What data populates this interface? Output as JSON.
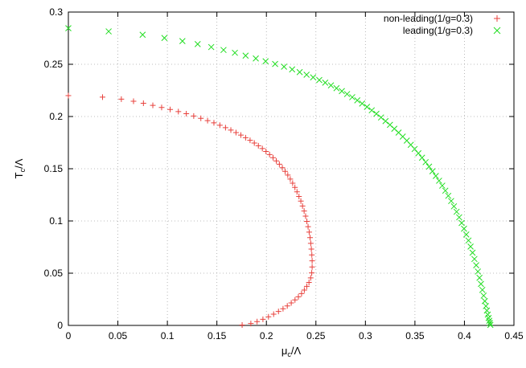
{
  "chart_data": {
    "type": "scatter",
    "title": "",
    "xlabel": {
      "main": "μ",
      "sub": "c",
      "tail": "/Λ"
    },
    "ylabel": {
      "main": "T",
      "sub": "c",
      "tail": "/Λ"
    },
    "xlim": [
      0,
      0.45
    ],
    "ylim": [
      0,
      0.3
    ],
    "x_ticks": [
      0,
      0.05,
      0.1,
      0.15,
      0.2,
      0.25,
      0.3,
      0.35,
      0.4,
      0.45
    ],
    "x_tick_labels": [
      "0",
      "0.05",
      "0.1",
      "0.15",
      "0.2",
      "0.25",
      "0.3",
      "0.35",
      "0.4",
      "0.45"
    ],
    "y_ticks": [
      0,
      0.05,
      0.1,
      0.15,
      0.2,
      0.25,
      0.3
    ],
    "y_tick_labels": [
      "0",
      "0.05",
      "0.1",
      "0.15",
      "0.2",
      "0.25",
      "0.3"
    ],
    "grid": true,
    "legend_position": "top-right",
    "series": [
      {
        "name": "non-leading(1/g=0.3)",
        "marker": "plus",
        "color": "#e8413c",
        "points": [
          [
            0.0,
            0.22
          ],
          [
            0.0345,
            0.2186
          ],
          [
            0.0535,
            0.2166
          ],
          [
            0.0658,
            0.2146
          ],
          [
            0.0758,
            0.2127
          ],
          [
            0.0853,
            0.2107
          ],
          [
            0.0942,
            0.2087
          ],
          [
            0.1028,
            0.2067
          ],
          [
            0.1111,
            0.2047
          ],
          [
            0.1191,
            0.2027
          ],
          [
            0.1266,
            0.2005
          ],
          [
            0.1338,
            0.1983
          ],
          [
            0.1406,
            0.1961
          ],
          [
            0.147,
            0.1939
          ],
          [
            0.153,
            0.1916
          ],
          [
            0.1587,
            0.1893
          ],
          [
            0.1641,
            0.187
          ],
          [
            0.1693,
            0.1846
          ],
          [
            0.1742,
            0.1822
          ],
          [
            0.179,
            0.1797
          ],
          [
            0.1835,
            0.1772
          ],
          [
            0.1878,
            0.1746
          ],
          [
            0.1919,
            0.172
          ],
          [
            0.1959,
            0.1693
          ],
          [
            0.1996,
            0.1665
          ],
          [
            0.2032,
            0.1636
          ],
          [
            0.2067,
            0.1606
          ],
          [
            0.21,
            0.1575
          ],
          [
            0.2131,
            0.1543
          ],
          [
            0.2161,
            0.151
          ],
          [
            0.2189,
            0.1475
          ],
          [
            0.2216,
            0.1439
          ],
          [
            0.2241,
            0.1401
          ],
          [
            0.2265,
            0.1362
          ],
          [
            0.2288,
            0.1321
          ],
          [
            0.2309,
            0.1279
          ],
          [
            0.2329,
            0.1235
          ],
          [
            0.2348,
            0.119
          ],
          [
            0.2365,
            0.1143
          ],
          [
            0.2381,
            0.1095
          ],
          [
            0.2396,
            0.1046
          ],
          [
            0.2409,
            0.0996
          ],
          [
            0.2421,
            0.0945
          ],
          [
            0.2432,
            0.0893
          ],
          [
            0.2441,
            0.084
          ],
          [
            0.2448,
            0.0786
          ],
          [
            0.2454,
            0.0731
          ],
          [
            0.2459,
            0.0675
          ],
          [
            0.2462,
            0.0618
          ],
          [
            0.2462,
            0.056
          ],
          [
            0.2458,
            0.0503
          ],
          [
            0.2447,
            0.0455
          ],
          [
            0.243,
            0.0412
          ],
          [
            0.2408,
            0.0374
          ],
          [
            0.2383,
            0.0338
          ],
          [
            0.2355,
            0.0305
          ],
          [
            0.2323,
            0.0274
          ],
          [
            0.2289,
            0.0244
          ],
          [
            0.2251,
            0.0215
          ],
          [
            0.2211,
            0.0187
          ],
          [
            0.2168,
            0.016
          ],
          [
            0.2122,
            0.0134
          ],
          [
            0.2073,
            0.0108
          ],
          [
            0.2021,
            0.0083
          ],
          [
            0.1965,
            0.0059
          ],
          [
            0.1906,
            0.0037
          ],
          [
            0.1843,
            0.0018
          ],
          [
            0.1755,
            0.0004
          ]
        ]
      },
      {
        "name": "leading(1/g=0.3)",
        "marker": "cross",
        "color": "#22dd22",
        "points": [
          [
            0.0,
            0.2845
          ],
          [
            0.0407,
            0.2815
          ],
          [
            0.075,
            0.2783
          ],
          [
            0.097,
            0.2752
          ],
          [
            0.1152,
            0.2722
          ],
          [
            0.1306,
            0.2693
          ],
          [
            0.1443,
            0.2665
          ],
          [
            0.1567,
            0.2637
          ],
          [
            0.1682,
            0.261
          ],
          [
            0.179,
            0.2583
          ],
          [
            0.1893,
            0.2556
          ],
          [
            0.1992,
            0.2529
          ],
          [
            0.2088,
            0.2503
          ],
          [
            0.2178,
            0.2477
          ],
          [
            0.226,
            0.2451
          ],
          [
            0.2336,
            0.2425
          ],
          [
            0.2406,
            0.24
          ],
          [
            0.2472,
            0.2375
          ],
          [
            0.2534,
            0.2349
          ],
          [
            0.2594,
            0.2324
          ],
          [
            0.2652,
            0.2298
          ],
          [
            0.2708,
            0.2271
          ],
          [
            0.2762,
            0.2243
          ],
          [
            0.2815,
            0.2215
          ],
          [
            0.2867,
            0.2185
          ],
          [
            0.2918,
            0.2155
          ],
          [
            0.2967,
            0.2124
          ],
          [
            0.3016,
            0.2092
          ],
          [
            0.3064,
            0.2059
          ],
          [
            0.3111,
            0.2026
          ],
          [
            0.3158,
            0.1991
          ],
          [
            0.3203,
            0.1956
          ],
          [
            0.3248,
            0.192
          ],
          [
            0.3292,
            0.1883
          ],
          [
            0.3335,
            0.1846
          ],
          [
            0.3377,
            0.1808
          ],
          [
            0.3418,
            0.1769
          ],
          [
            0.3458,
            0.1729
          ],
          [
            0.3497,
            0.1689
          ],
          [
            0.3535,
            0.1648
          ],
          [
            0.3572,
            0.1606
          ],
          [
            0.3608,
            0.1563
          ],
          [
            0.3643,
            0.152
          ],
          [
            0.3677,
            0.1476
          ],
          [
            0.3711,
            0.1431
          ],
          [
            0.3744,
            0.1385
          ],
          [
            0.3776,
            0.1338
          ],
          [
            0.3807,
            0.129
          ],
          [
            0.3837,
            0.1241
          ],
          [
            0.3866,
            0.1191
          ],
          [
            0.3894,
            0.114
          ],
          [
            0.3921,
            0.1088
          ],
          [
            0.3947,
            0.1035
          ],
          [
            0.3972,
            0.0981
          ],
          [
            0.3996,
            0.0926
          ],
          [
            0.4019,
            0.087
          ],
          [
            0.4041,
            0.0813
          ],
          [
            0.4062,
            0.0755
          ],
          [
            0.4082,
            0.0696
          ],
          [
            0.4101,
            0.0636
          ],
          [
            0.4119,
            0.0576
          ],
          [
            0.4136,
            0.0516
          ],
          [
            0.4152,
            0.0456
          ],
          [
            0.4167,
            0.0397
          ],
          [
            0.4181,
            0.034
          ],
          [
            0.4194,
            0.0285
          ],
          [
            0.4206,
            0.0233
          ],
          [
            0.4217,
            0.0185
          ],
          [
            0.4227,
            0.0142
          ],
          [
            0.4236,
            0.0104
          ],
          [
            0.4244,
            0.0071
          ],
          [
            0.4251,
            0.0044
          ],
          [
            0.4257,
            0.0022
          ],
          [
            0.4262,
            0.0005
          ]
        ]
      }
    ]
  }
}
